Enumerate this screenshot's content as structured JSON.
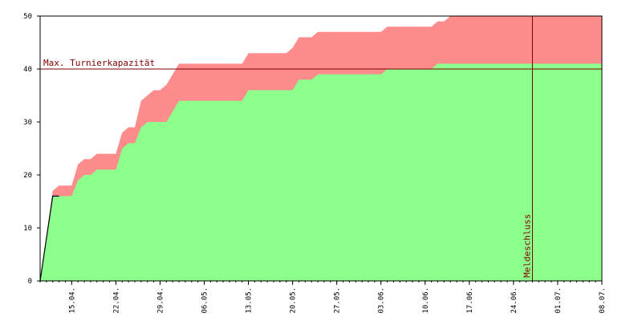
{
  "chart_data": {
    "type": "area",
    "title": "",
    "xlabel": "",
    "ylabel": "",
    "ylim": [
      0,
      50
    ],
    "xlim": [
      "2024-04-10",
      "2024-07-08"
    ],
    "yticks": [
      0,
      10,
      20,
      30,
      40,
      50
    ],
    "xticks": [
      "15.04.",
      "22.04.",
      "29.04.",
      "06.05.",
      "13.05.",
      "20.05.",
      "27.05.",
      "03.06.",
      "10.06.",
      "17.06.",
      "24.06.",
      "01.07.",
      "08.07."
    ],
    "xtick_dates": [
      "2024-04-15",
      "2024-04-22",
      "2024-04-29",
      "2024-05-06",
      "2024-05-13",
      "2024-05-20",
      "2024-05-27",
      "2024-06-03",
      "2024-06-10",
      "2024-06-17",
      "2024-06-24",
      "2024-07-01",
      "2024-07-08"
    ],
    "series": [
      {
        "color": "#ff8c8c",
        "x": [
          "2024-04-10",
          "2024-04-12",
          "2024-04-13",
          "2024-04-14",
          "2024-04-15",
          "2024-04-16",
          "2024-04-17",
          "2024-04-18",
          "2024-04-19",
          "2024-04-20",
          "2024-04-21",
          "2024-04-22",
          "2024-04-23",
          "2024-04-24",
          "2024-04-25",
          "2024-04-26",
          "2024-04-27",
          "2024-04-28",
          "2024-04-29",
          "2024-04-30",
          "2024-05-01",
          "2024-05-02",
          "2024-05-03",
          "2024-05-04",
          "2024-05-05",
          "2024-05-12",
          "2024-05-13",
          "2024-05-14",
          "2024-05-19",
          "2024-05-20",
          "2024-05-21",
          "2024-05-22",
          "2024-05-23",
          "2024-05-24",
          "2024-05-25",
          "2024-05-31",
          "2024-06-01",
          "2024-06-02",
          "2024-06-03",
          "2024-06-04",
          "2024-06-05",
          "2024-06-06",
          "2024-06-07",
          "2024-06-08",
          "2024-06-09",
          "2024-06-10",
          "2024-06-11",
          "2024-06-12",
          "2024-06-13",
          "2024-06-14",
          "2024-06-15",
          "2024-06-16",
          "2024-07-08"
        ],
        "values": [
          0,
          17,
          18,
          18,
          18,
          22,
          23,
          23,
          24,
          24,
          24,
          24,
          28,
          29,
          29,
          34,
          35,
          36,
          36,
          37,
          39,
          41,
          41,
          41,
          41,
          41,
          43,
          43,
          43,
          44,
          46,
          46,
          46,
          47,
          47,
          47,
          47,
          47,
          47,
          48,
          48,
          48,
          48,
          48,
          48,
          48,
          48,
          49,
          49,
          50,
          50,
          50,
          50
        ]
      },
      {
        "color": "#8cff8c",
        "x": [
          "2024-04-10",
          "2024-04-12",
          "2024-04-13",
          "2024-04-14",
          "2024-04-15",
          "2024-04-16",
          "2024-04-17",
          "2024-04-18",
          "2024-04-19",
          "2024-04-20",
          "2024-04-21",
          "2024-04-22",
          "2024-04-23",
          "2024-04-24",
          "2024-04-25",
          "2024-04-26",
          "2024-04-27",
          "2024-04-28",
          "2024-04-29",
          "2024-04-30",
          "2024-05-01",
          "2024-05-02",
          "2024-05-03",
          "2024-05-04",
          "2024-05-05",
          "2024-05-12",
          "2024-05-13",
          "2024-05-14",
          "2024-05-19",
          "2024-05-20",
          "2024-05-21",
          "2024-05-22",
          "2024-05-23",
          "2024-05-24",
          "2024-05-25",
          "2024-05-31",
          "2024-06-01",
          "2024-06-02",
          "2024-06-03",
          "2024-06-04",
          "2024-06-05",
          "2024-06-06",
          "2024-06-07",
          "2024-06-08",
          "2024-06-09",
          "2024-06-10",
          "2024-06-11",
          "2024-06-12",
          "2024-07-08"
        ],
        "values": [
          0,
          16,
          16,
          16,
          16,
          19,
          20,
          20,
          21,
          21,
          21,
          21,
          25,
          26,
          26,
          29,
          30,
          30,
          30,
          30,
          32,
          34,
          34,
          34,
          34,
          34,
          36,
          36,
          36,
          36,
          38,
          38,
          38,
          39,
          39,
          39,
          39,
          39,
          39,
          40,
          40,
          40,
          40,
          40,
          40,
          40,
          40,
          41,
          41
        ]
      }
    ],
    "annotations": [
      {
        "type": "hline",
        "y": 40,
        "label": "Max. Turnierkapazität",
        "color": "#800000"
      },
      {
        "type": "vline",
        "x": "2024-06-27",
        "label": "Meldeschluss",
        "color": "#800000"
      }
    ],
    "grid": false,
    "legend": "none"
  }
}
